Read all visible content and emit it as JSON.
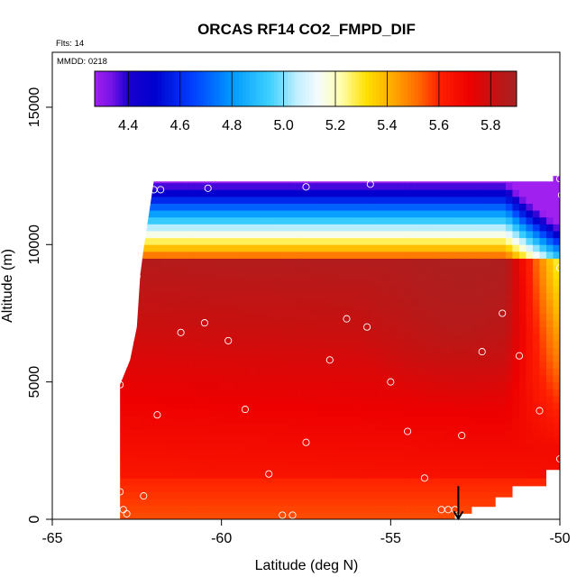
{
  "chart_data": {
    "type": "heatmap",
    "title": "ORCAS RF14 CO2_FMPD_DIF",
    "xlabel": "Latitude (deg N)",
    "ylabel": "Altitude (m)",
    "info_lines": [
      "Flts: 14",
      "MMDD: 0218"
    ],
    "xlim": [
      -65,
      -50
    ],
    "ylim": [
      0,
      17000
    ],
    "x_ticks": [
      -65,
      -60,
      -55,
      -50
    ],
    "y_ticks": [
      0,
      5000,
      10000,
      15000
    ],
    "colorbar": {
      "range": [
        4.27,
        5.9
      ],
      "ticks": [
        4.4,
        4.6,
        4.8,
        5.0,
        5.2,
        5.4,
        5.6,
        5.8
      ],
      "tick_labels": [
        "4.4",
        "4.6",
        "4.8",
        "5.0",
        "5.2",
        "5.4",
        "5.6",
        "5.8"
      ]
    },
    "colormap": [
      [
        4.27,
        "#a020f0"
      ],
      [
        4.33,
        "#7b15e8"
      ],
      [
        4.4,
        "#1a00d0"
      ],
      [
        4.5,
        "#0000cd"
      ],
      [
        4.65,
        "#0040ff"
      ],
      [
        4.8,
        "#0099ff"
      ],
      [
        4.95,
        "#3fd2ff"
      ],
      [
        5.05,
        "#bfefff"
      ],
      [
        5.13,
        "#f4fbff"
      ],
      [
        5.22,
        "#ffffb0"
      ],
      [
        5.32,
        "#ffe000"
      ],
      [
        5.42,
        "#ffaa00"
      ],
      [
        5.52,
        "#ff6a00"
      ],
      [
        5.6,
        "#ff2000"
      ],
      [
        5.72,
        "#ee0000"
      ],
      [
        5.8,
        "#c81010"
      ],
      [
        5.9,
        "#a82222"
      ]
    ],
    "field": {
      "x_range": [
        -63,
        -50
      ],
      "y_range": [
        0,
        12500
      ],
      "boundary_ceiling": [
        [
          -63.0,
          4900
        ],
        [
          -62.7,
          5800
        ],
        [
          -62.5,
          7000
        ],
        [
          -62.4,
          8900
        ],
        [
          -62.3,
          9850
        ],
        [
          -62.0,
          12300
        ],
        [
          -50.2,
          12300
        ],
        [
          -50.2,
          12500
        ],
        [
          -50.0,
          12500
        ]
      ],
      "boundary_floor": [
        [
          -63.0,
          0
        ],
        [
          -53.1,
          0
        ],
        [
          -53.1,
          200
        ],
        [
          -52.6,
          200
        ],
        [
          -52.6,
          450
        ],
        [
          -51.9,
          450
        ],
        [
          -51.9,
          800
        ],
        [
          -51.4,
          800
        ],
        [
          -51.4,
          1200
        ],
        [
          -50.4,
          1200
        ],
        [
          -50.4,
          1800
        ],
        [
          -50.0,
          1800
        ]
      ]
    },
    "flight_points": [
      [
        -63.0,
        4900
      ],
      [
        -62.5,
        8850
      ],
      [
        -62.0,
        12000
      ],
      [
        -61.8,
        12000
      ],
      [
        -61.2,
        6800
      ],
      [
        -61.9,
        3800
      ],
      [
        -60.5,
        7150
      ],
      [
        -60.4,
        12050
      ],
      [
        -59.8,
        6500
      ],
      [
        -59.3,
        4000
      ],
      [
        -58.6,
        1650
      ],
      [
        -58.2,
        150
      ],
      [
        -57.9,
        150
      ],
      [
        -57.5,
        2800
      ],
      [
        -57.5,
        12100
      ],
      [
        -56.8,
        5800
      ],
      [
        -56.3,
        7300
      ],
      [
        -55.7,
        7000
      ],
      [
        -55.6,
        12200
      ],
      [
        -55.0,
        5000
      ],
      [
        -54.5,
        3200
      ],
      [
        -54.0,
        1500
      ],
      [
        -53.5,
        350
      ],
      [
        -53.3,
        350
      ],
      [
        -53.1,
        350
      ],
      [
        -52.9,
        3050
      ],
      [
        -52.3,
        6100
      ],
      [
        -51.7,
        7500
      ],
      [
        -51.2,
        5950
      ],
      [
        -50.6,
        3950
      ],
      [
        -50.0,
        2200
      ],
      [
        -50.0,
        9150
      ],
      [
        -49.95,
        11800
      ],
      [
        -50.0,
        12400
      ],
      [
        -63.0,
        1000
      ],
      [
        -62.9,
        350
      ],
      [
        -62.8,
        200
      ],
      [
        -62.3,
        850
      ]
    ],
    "marker": {
      "x": -53.0,
      "y": 550,
      "direction": "down"
    }
  }
}
